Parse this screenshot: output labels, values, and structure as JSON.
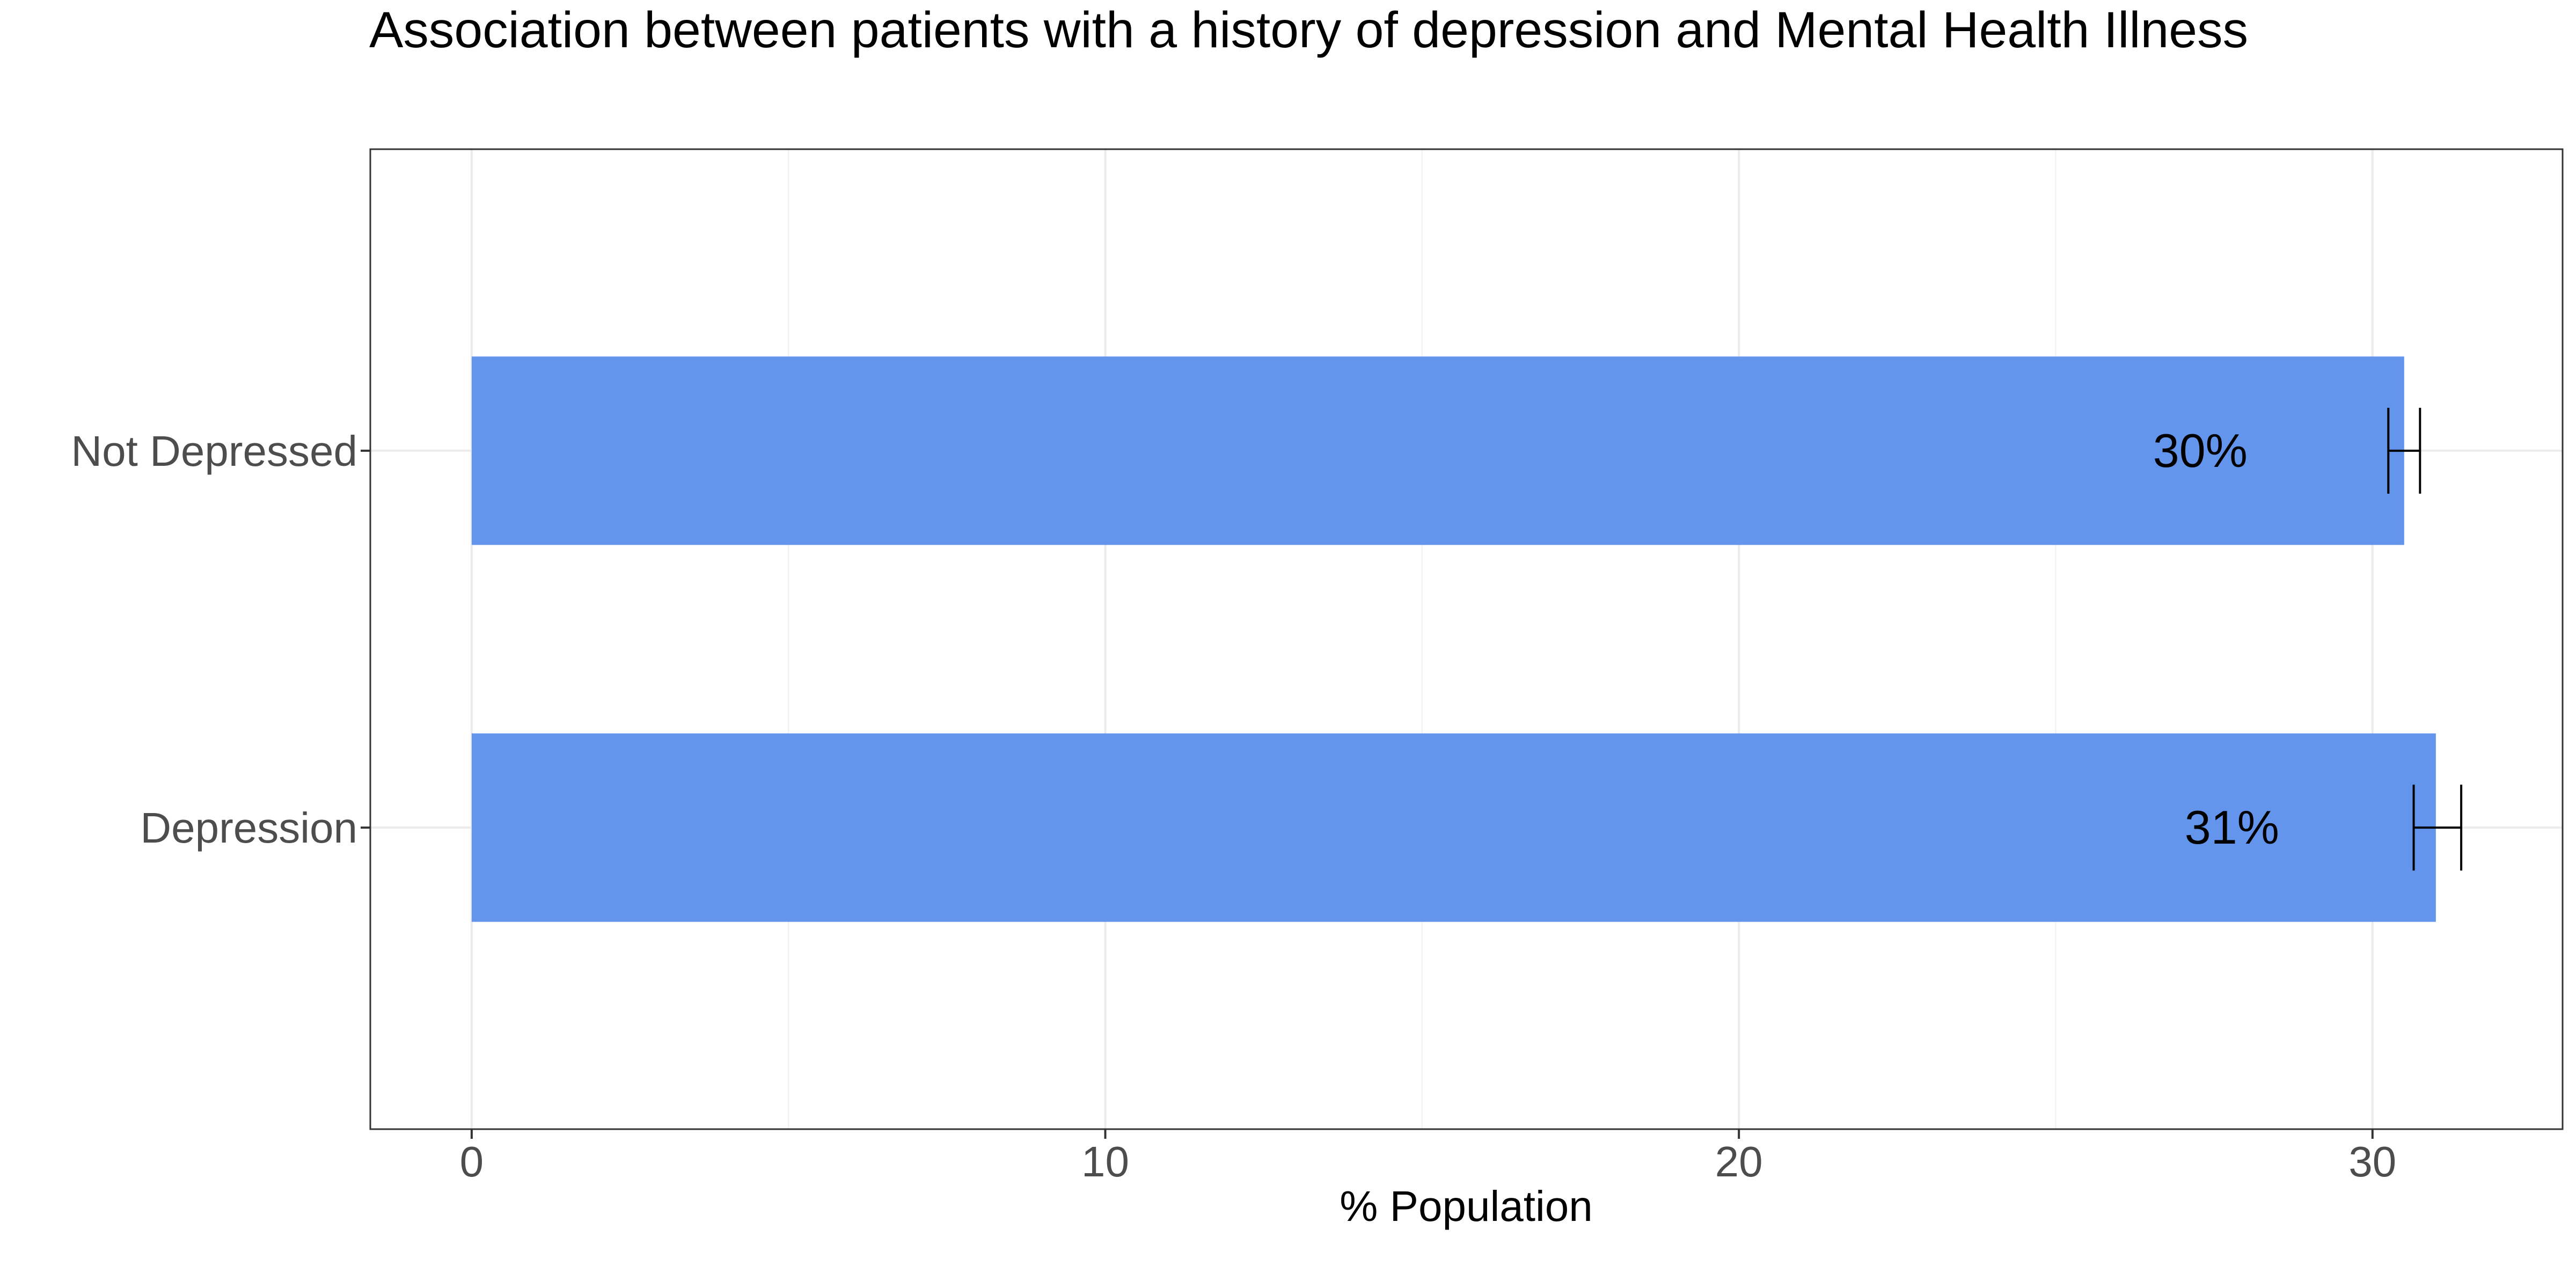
{
  "chart_data": {
    "type": "bar",
    "orientation": "horizontal",
    "title": "Association between patients with a history of depression and Mental Health Illness",
    "xlabel": "% Population",
    "ylabel": "",
    "xlim": [
      -1.6,
      33
    ],
    "x_ticks": [
      0,
      10,
      20,
      30
    ],
    "x_minor_ticks": [
      5,
      15,
      25
    ],
    "grid": true,
    "bar_color": "#6495ed",
    "categories": [
      "Not Depressed",
      "Depression"
    ],
    "values": [
      30.5,
      31.0
    ],
    "error_low": [
      30.25,
      30.65
    ],
    "error_high": [
      30.75,
      31.4
    ],
    "labels": [
      "30%",
      "31%"
    ]
  }
}
